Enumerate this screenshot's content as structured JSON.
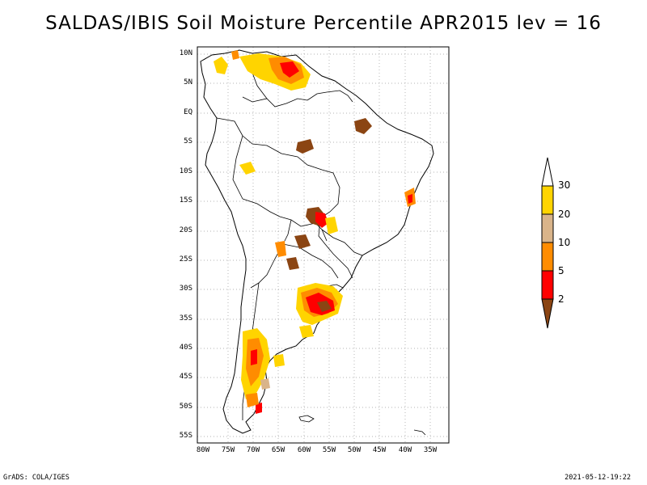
{
  "title": "SALDAS/IBIS Soil Moisture Percentile APR2015 lev = 16",
  "map": {
    "region": "South America",
    "lon_range": [
      "80W",
      "32W"
    ],
    "lat_range": [
      "56S",
      "12N"
    ],
    "grid": "dotted",
    "y_ticks": [
      "10N",
      "5N",
      "EQ",
      "5S",
      "10S",
      "15S",
      "20S",
      "25S",
      "30S",
      "35S",
      "40S",
      "45S",
      "50S",
      "55S"
    ],
    "x_ticks": [
      "80W",
      "75W",
      "70W",
      "65W",
      "60W",
      "55W",
      "50W",
      "45W",
      "40W",
      "35W"
    ]
  },
  "legend": {
    "levels": [
      "30",
      "20",
      "10",
      "5",
      "2"
    ],
    "bins": [
      {
        "range": "above 30",
        "color": "#ffffff"
      },
      {
        "range": "20-30",
        "color": "#ffd400"
      },
      {
        "range": "10-20",
        "color": "#d9b48a"
      },
      {
        "range": "5-10",
        "color": "#ff8c00"
      },
      {
        "range": "2-5",
        "color": "#ff0000"
      },
      {
        "range": "below 2",
        "color": "#8b4513"
      }
    ]
  },
  "footer": {
    "left": "GrADS: COLA/IGES",
    "right": "2021-05-12-19:22"
  }
}
